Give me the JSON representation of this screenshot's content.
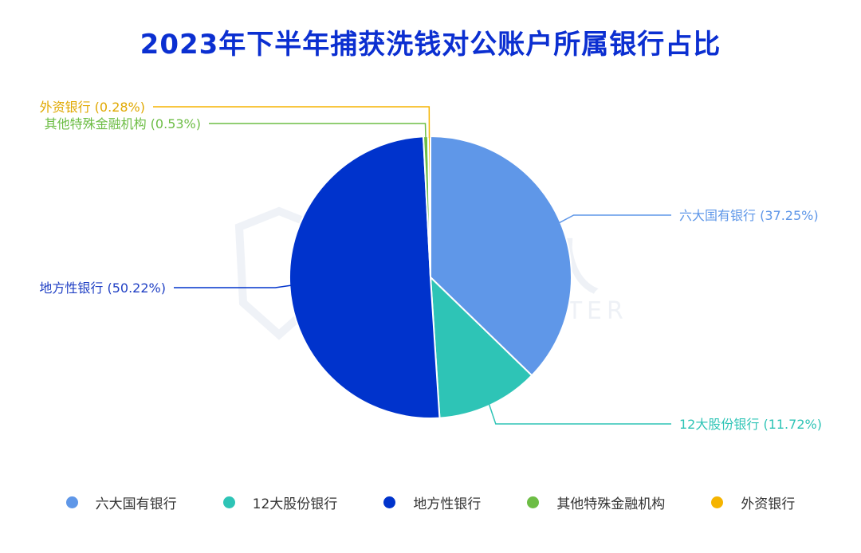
{
  "chart_data": {
    "type": "pie",
    "title": "2023年下半年捕获洗钱对公账户所属银行占比",
    "categories": [
      "六大国有银行",
      "12大股份银行",
      "地方性银行",
      "其他特殊金融机构",
      "外资银行"
    ],
    "values": [
      37.25,
      11.72,
      50.22,
      0.53,
      0.28
    ],
    "unit": "%",
    "colors": [
      "#5f97e8",
      "#2ec4b6",
      "#0033cc",
      "#6dbd45",
      "#f5b400"
    ],
    "labels": [
      "六大国有银行 (37.25%)",
      "12大股份银行 (11.72%)",
      "地方性银行 (50.22%)",
      "其他特殊金融机构 (0.53%)",
      "外资银行 (0.28%)"
    ],
    "legend_position": "bottom"
  },
  "watermark": {
    "cn": "威胁猎人",
    "en": "THREAT HUNTER"
  }
}
